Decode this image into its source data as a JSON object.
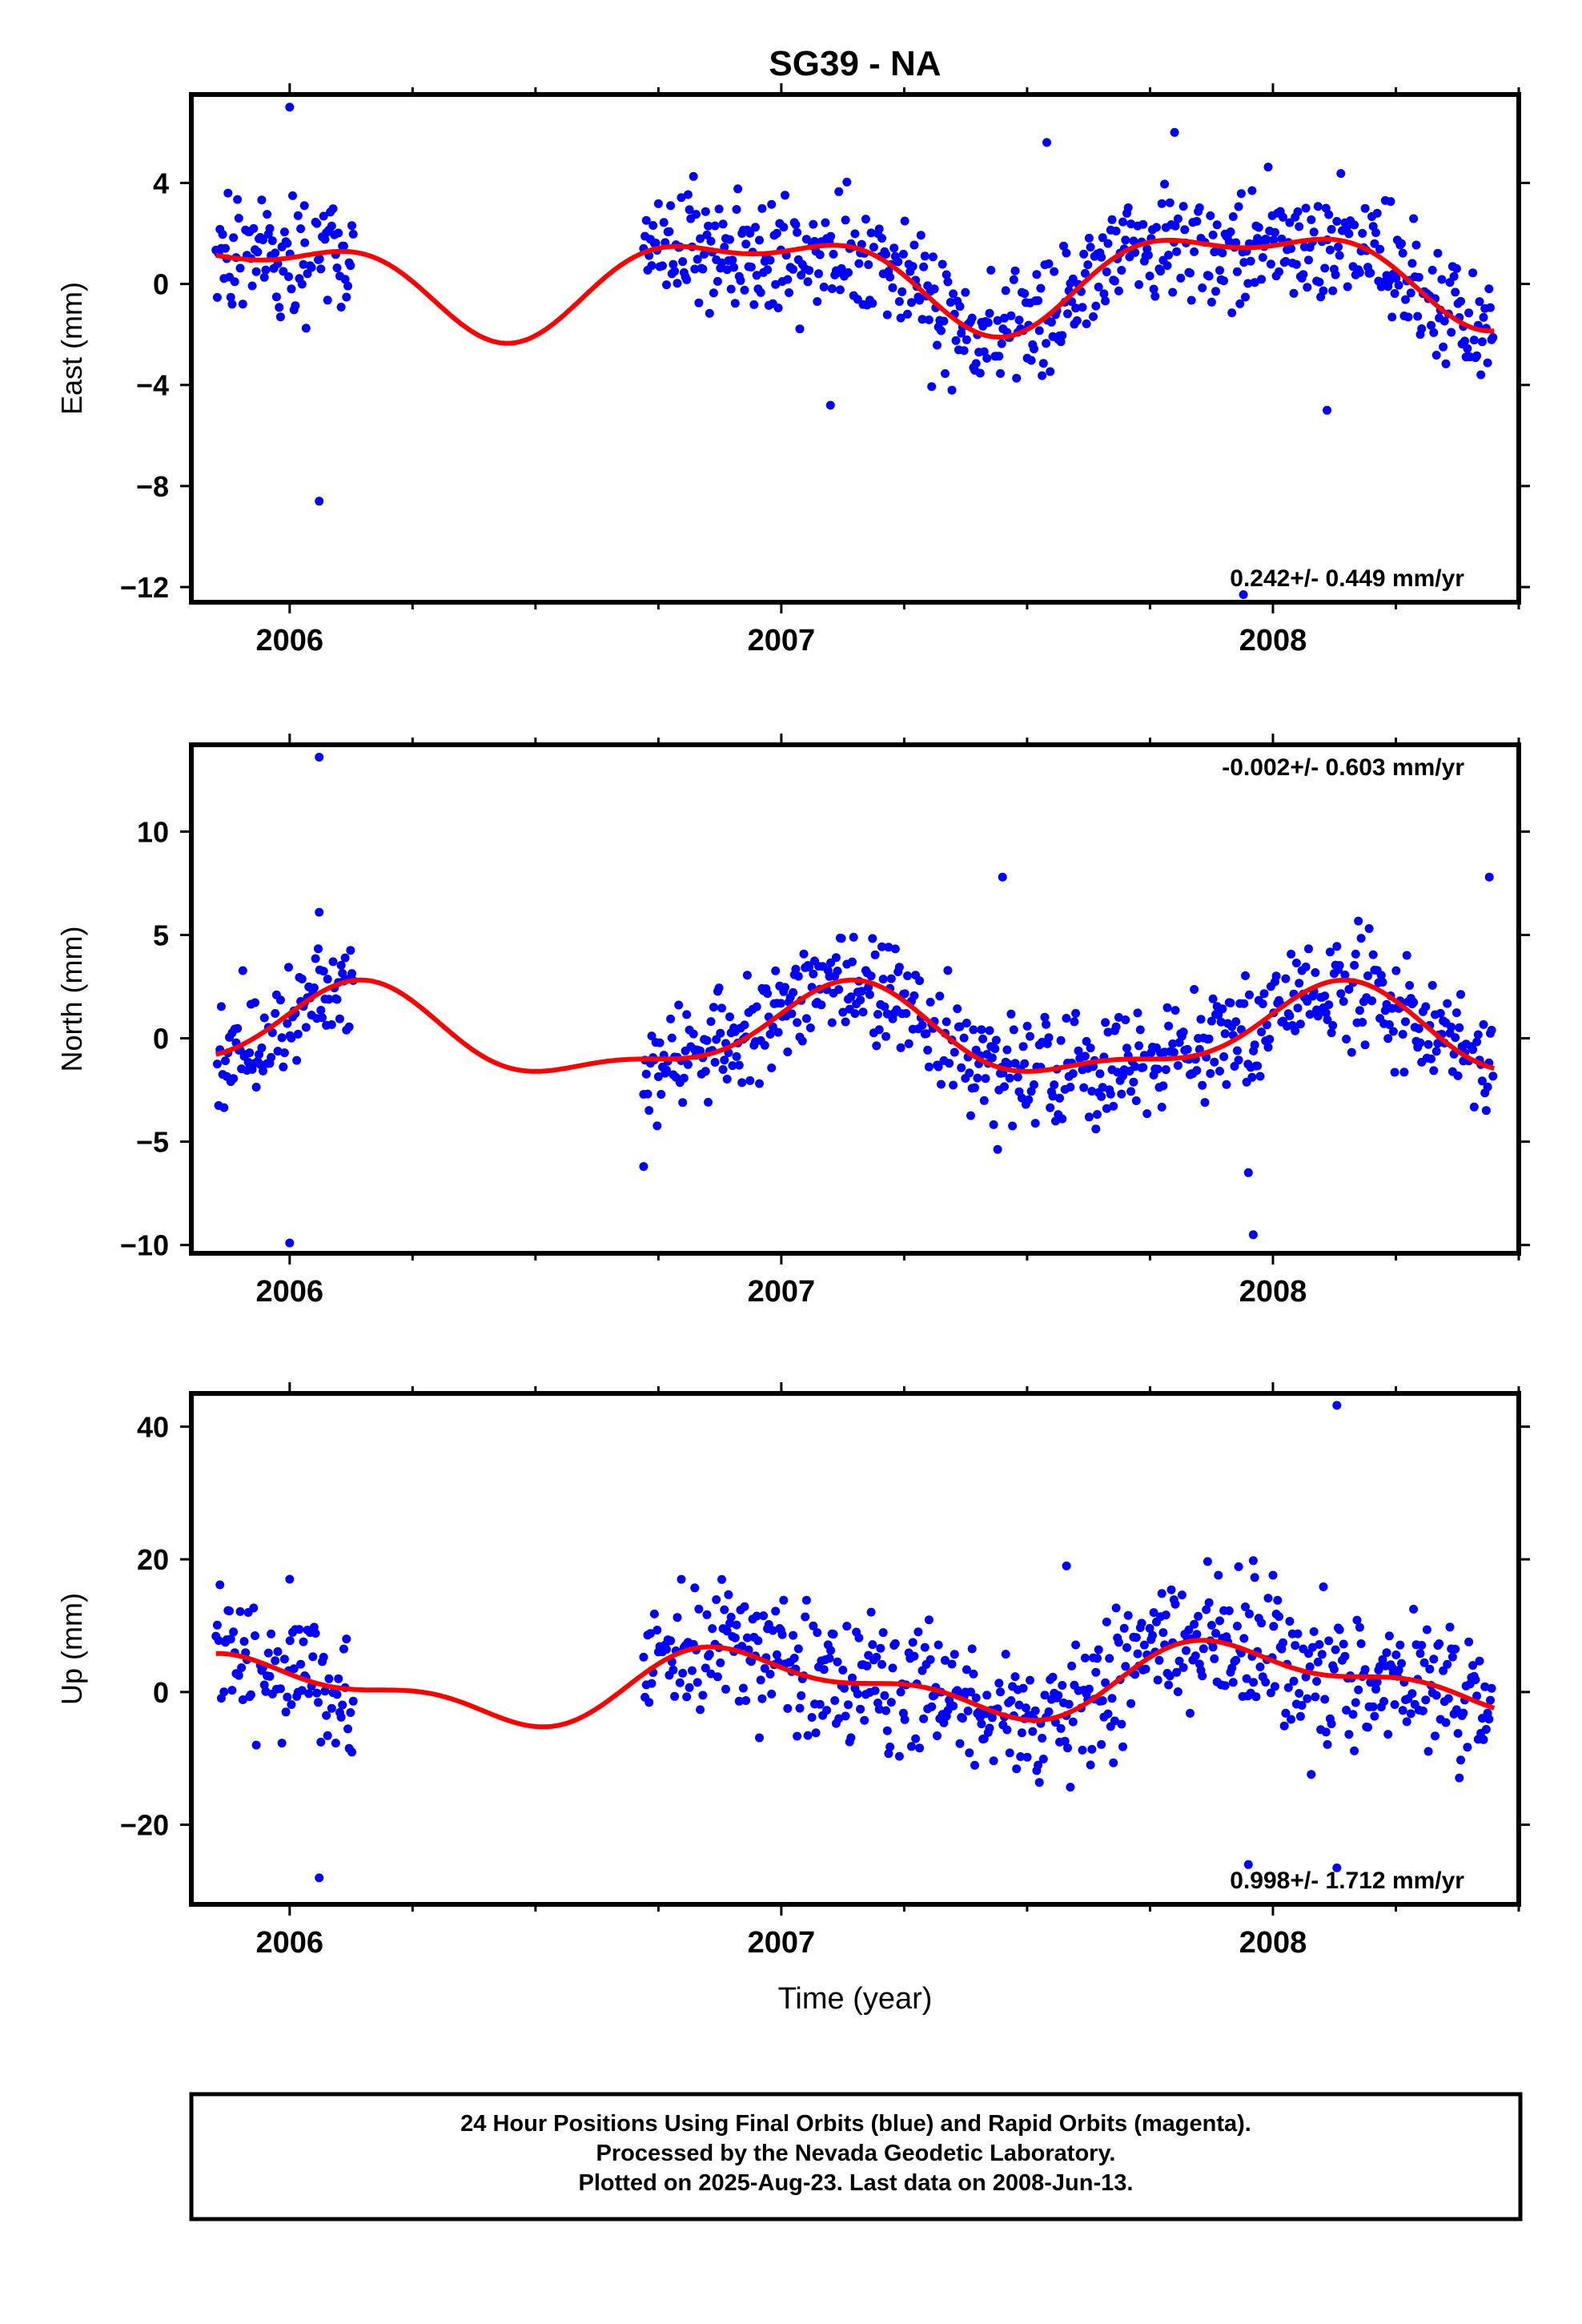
{
  "title": "SG39 - NA",
  "xlabel": "Time (year)",
  "footer_lines": [
    "24 Hour Positions Using Final Orbits (blue) and Rapid Orbits (magenta).",
    "Processed by the Nevada Geodetic Laboratory.",
    "Plotted on 2025-Aug-23. Last data on 2008-Jun-13."
  ],
  "colors": {
    "points": "#0000ff",
    "model": "#ff0000",
    "frame": "#000000"
  },
  "chart_data": [
    {
      "type": "scatter",
      "ylabel": "East (mm)",
      "rate_label": "0.242+/- 0.449 mm/yr",
      "rate_position": "bottom-right",
      "xlim": [
        2005.8,
        2008.5
      ],
      "ylim": [
        -12.6,
        7.5
      ],
      "yticks": [
        4,
        0,
        -4,
        -8,
        -12
      ],
      "ytick_labels": [
        "4",
        "0",
        "−4",
        "−8",
        "−12"
      ],
      "xticks": [
        2006,
        2007,
        2008
      ],
      "xtick_labels": [
        "2006",
        "2007",
        "2008"
      ],
      "seasonal": {
        "mean": 0.3,
        "a1s": -0.6,
        "a1c": 1.6,
        "a2s": 0.5,
        "a2c": -0.6,
        "rate": 0.242,
        "t0": 2007.1
      },
      "segments": [
        [
          2005.85,
          2006.13
        ],
        [
          2006.72,
          2008.45
        ]
      ],
      "scatter_sd": 1.15,
      "outliers": [
        [
          2006.0,
          7.0
        ],
        [
          2006.06,
          -8.6
        ],
        [
          2006.03,
          3.1
        ],
        [
          2007.54,
          5.6
        ],
        [
          2007.8,
          6.0
        ],
        [
          2007.1,
          -4.8
        ],
        [
          2007.94,
          -12.3
        ],
        [
          2008.11,
          -5.0
        ]
      ]
    },
    {
      "type": "scatter",
      "ylabel": "North (mm)",
      "rate_label": "-0.002+/- 0.603 mm/yr",
      "rate_position": "top-right",
      "xlim": [
        2005.8,
        2008.5
      ],
      "ylim": [
        -10.4,
        14.2
      ],
      "yticks": [
        10,
        5,
        0,
        -5,
        -10
      ],
      "ytick_labels": [
        "10",
        "5",
        "0",
        "−5",
        "−10"
      ],
      "xticks": [
        2006,
        2007,
        2008
      ],
      "xtick_labels": [
        "2006",
        "2007",
        "2008"
      ],
      "seasonal": {
        "mean": 0.1,
        "a1s": 1.4,
        "a1c": 1.4,
        "a2s": 0.7,
        "a2c": -0.3,
        "rate": -0.002,
        "t0": 2007.1
      },
      "segments": [
        [
          2005.85,
          2006.13
        ],
        [
          2006.72,
          2008.45
        ]
      ],
      "scatter_sd": 1.35,
      "outliers": [
        [
          2006.06,
          13.6
        ],
        [
          2006.0,
          -9.9
        ],
        [
          2006.06,
          6.1
        ],
        [
          2007.45,
          7.8
        ],
        [
          2006.72,
          -6.2
        ],
        [
          2007.96,
          -9.5
        ],
        [
          2008.44,
          7.8
        ],
        [
          2007.95,
          -6.5
        ]
      ]
    },
    {
      "type": "scatter",
      "ylabel": "Up (mm)",
      "rate_label": "0.998+/- 1.712 mm/yr",
      "rate_position": "bottom-right",
      "xlim": [
        2005.8,
        2008.5
      ],
      "ylim": [
        -32,
        45
      ],
      "yticks": [
        40,
        20,
        0,
        -20
      ],
      "ytick_labels": [
        "40",
        "20",
        "0",
        "−20"
      ],
      "xticks": [
        2006,
        2007,
        2008
      ],
      "xtick_labels": [
        "2006",
        "2007",
        "2008"
      ],
      "seasonal": {
        "mean": 1.2,
        "a1s": -1.8,
        "a1c": 4.2,
        "a2s": -1.5,
        "a2c": -1.6,
        "rate": 0.998,
        "t0": 2007.1
      },
      "segments": [
        [
          2005.85,
          2006.13
        ],
        [
          2006.72,
          2008.45
        ]
      ],
      "scatter_sd": 5.0,
      "outliers": [
        [
          2008.13,
          43.2
        ],
        [
          2006.06,
          -28.0
        ],
        [
          2007.95,
          -26.0
        ],
        [
          2008.13,
          -26.5
        ],
        [
          2006.0,
          17.0
        ],
        [
          2007.96,
          19.8
        ],
        [
          2007.58,
          19.0
        ],
        [
          2008.0,
          17.6
        ]
      ]
    }
  ]
}
